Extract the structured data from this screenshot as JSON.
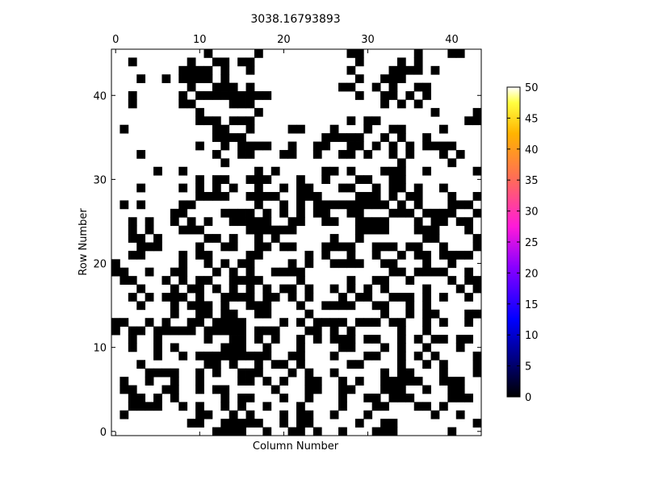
{
  "chart_data": {
    "type": "heatmap",
    "title": "3038.16793893",
    "xlabel": "Column Number",
    "ylabel": "Row Number",
    "x_ticks": [
      "0",
      "10",
      "20",
      "30",
      "40"
    ],
    "y_ticks": [
      "0",
      "10",
      "20",
      "30",
      "40"
    ],
    "xlim": [
      -0.5,
      43.5
    ],
    "ylim": [
      -0.5,
      45.5
    ],
    "colorbar": {
      "colormap": "gnuplot2",
      "range": [
        0,
        50
      ],
      "ticks": [
        "0",
        "5",
        "10",
        "15",
        "20",
        "25",
        "30",
        "35",
        "40",
        "45",
        "50"
      ]
    },
    "value_levels": [
      0,
      50
    ],
    "grid_note": "46 rows x 44 columns; row 0 at bottom; '#' = 0 (black), '.' = 50 (white)",
    "rows_top_to_bottom": [
      "...........#.....#..........##......#...##..",
      "..#......#..##.##............#....#.#.......",
      "........####.#..#...........#....####.#.....",
      "...#..#.####.#...............#..###.........",
      ".........#..###.#..........##..#.#..##......",
      "..#.....#.#########..........#..##.#.#......",
      "..#.....##....###...............#.#.#.......",
      "..........#......#....................#....#",
      "..........###.###...........#.##..........##",
      ".#..........##..#....##...#...#..##....#....",
      "............####.........#####..#.#..#......",
      "..........#..#.####..#..##..##.#.#.#.####...",
      "...#........#..##...##..#..##.#..#.#...#.#..",
      ".............#....................#.....#...",
      ".....#..#........#.#.....##.#...###..#.....#",
      "..........#.##..###...#..#...##..##........",
      "...#....#.#.#.#..#..#.##...##..#.##.#..#....",
      "..........####..####..###....###.#.##...#..#",
      ".#.#....##.......#..#.#.#########.#.#...###.",
      ".......##....####.#.#.#.##..##...###.####..#",
      "..#.#..#.#.#..#####..##..##..####...#.##.##.",
      "..#.#...###.....######.......####...###...#.",
      "..##.#.....##.#..#.#......#..#.......##....#",
      "...###....#..##..##.##...####..###.##..#...#",
      "..##....#.##....##.....#.#..#..#..#.##.####.",
      "#.......#..#.#.##....#.#..####..##...#..#...",
      "##..#..##...#.#.#..####..........##.####..#.",
      ".##...#.#.##..####....#.....#..##..#....#.##",
      "...#...#.##.#.#.#.#.##.#..#.#.#.#....#...#.#",
      "..#.#.###.#..####.##.#.#...#.##..###.#.#..#.",
      "...#...#.###.#..###...#..####..##..#.#.....",
      ".......#..##.##..##....#........#..#.##...##",
      "##..#.#..##.####....#.#.####.###.##..#.#..#",
      "#.##.#####.#####.###...##.#.#.....#..#......",
      "..#..#.....#..##.#.#..#.#.###.##..#.#.##.##.",
      "..#..#.#.....###..#...#....##...#.#..#...#.",
      ".....#..#.#########..##...#...##..#.#.#....#",
      "...#.......##.#..#.##.#.....##....#..#.#...#",
      "....####..#.#..###...#.#..#.....#.##...#...#",
      ".#..#..#..#....##.#.#..##..#.#..#####..###..",
      ".##...##..#.##.....#...##..##...###..#..##..",
      "..##.#.#.....#.##...#..#...#..##.###....###.",
      "..####..#.#..#.#..#...#....#...##...##.#....",
      ".#........##..#.#...#.##..#...#.......#..#..",
      ".........##..#####..#.##.....#..##.........#",
      "............####..#..##.#..#...###......#..."
    ]
  }
}
